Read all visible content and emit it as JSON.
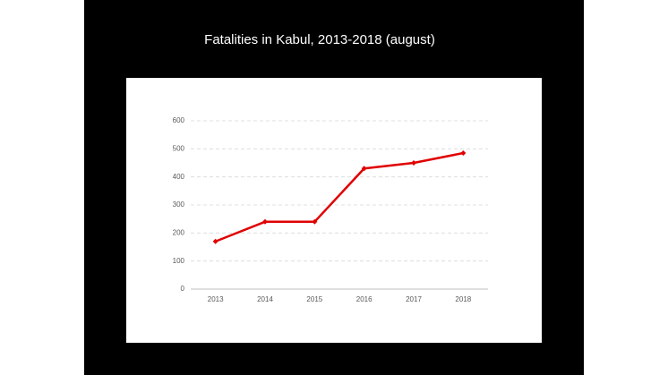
{
  "chart_data": {
    "type": "line",
    "title": "Fatalities in Kabul, 2013-2018 (august)",
    "categories": [
      "2013",
      "2014",
      "2015",
      "2016",
      "2017",
      "2018"
    ],
    "values": [
      170,
      240,
      240,
      430,
      450,
      485
    ],
    "color": "#e00000",
    "ylim": [
      0,
      600
    ],
    "yticks": [
      0,
      100,
      200,
      300,
      400,
      500,
      600
    ],
    "grid": true
  }
}
